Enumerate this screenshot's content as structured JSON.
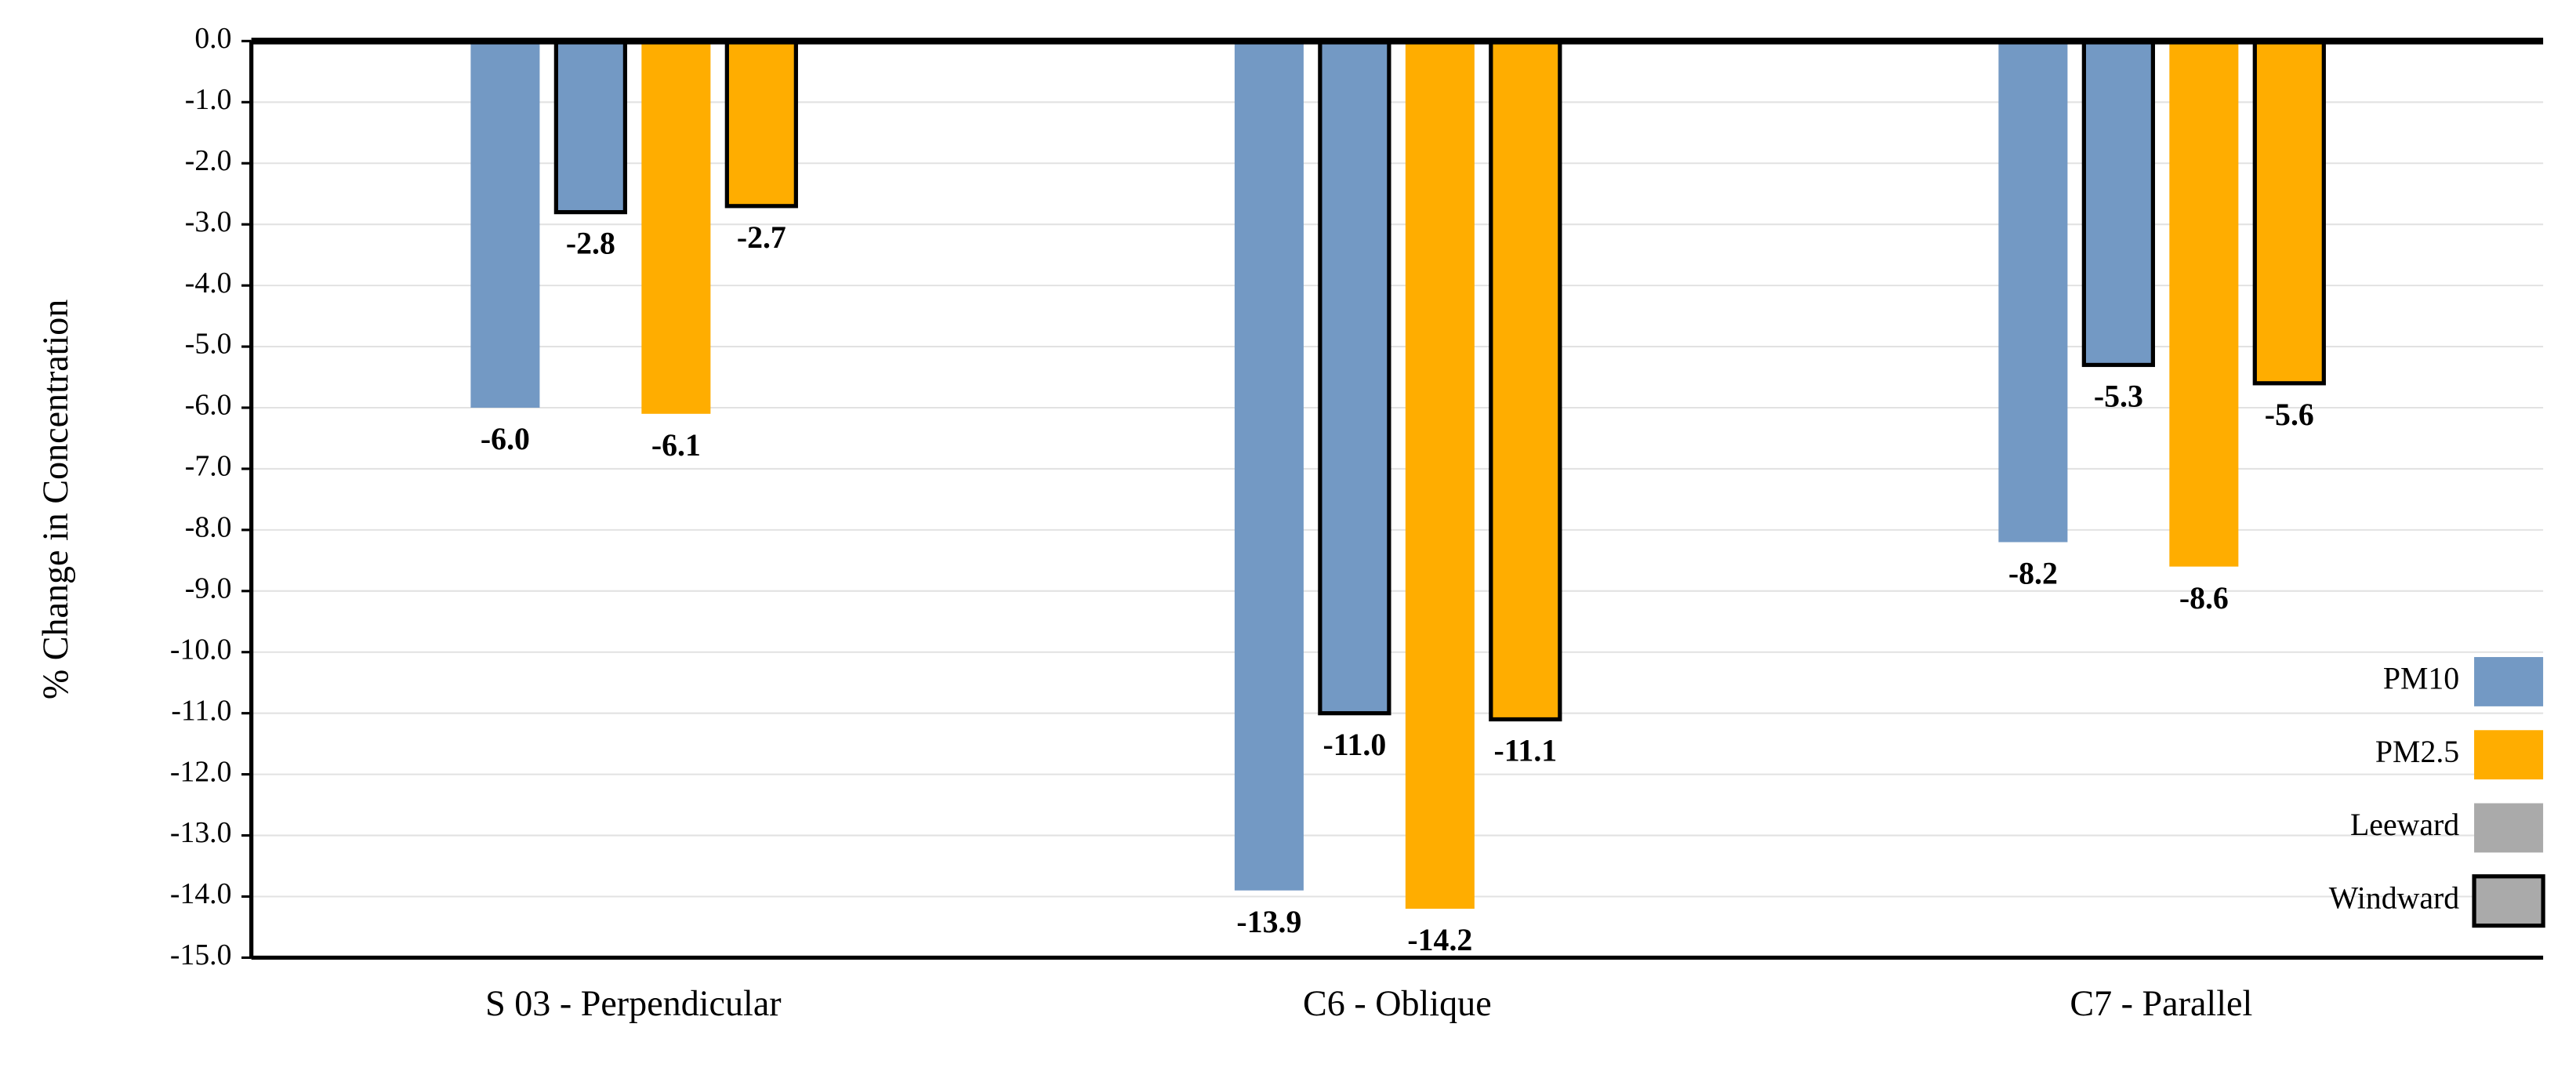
{
  "chart_data": {
    "type": "bar",
    "y_label": "% Change in Concentration",
    "categories": [
      "S 03 - Perpendicular",
      "C6 - Oblique",
      "C7 - Parallel"
    ],
    "series": [
      {
        "color": "#7399c4",
        "outline": false,
        "values": [
          -6.0,
          -13.9,
          -8.2
        ],
        "value_labels": [
          "-6.0",
          "-13.9",
          "-8.2"
        ]
      },
      {
        "color": "#7399c4",
        "outline": true,
        "values": [
          -2.8,
          -11.0,
          -5.3
        ],
        "value_labels": [
          "-2.8",
          "-11.0",
          "-5.3"
        ]
      },
      {
        "color": "#ffad00",
        "outline": false,
        "values": [
          -6.1,
          -14.2,
          -8.6
        ],
        "value_labels": [
          "-6.1",
          "-14.2",
          "-8.6"
        ]
      },
      {
        "color": "#ffad00",
        "outline": true,
        "values": [
          -2.7,
          -11.1,
          -5.6
        ],
        "value_labels": [
          "-2.7",
          "-11.1",
          "-5.6"
        ]
      }
    ],
    "legend": [
      {
        "label": "PM10",
        "color": "#7399c4",
        "outline": false
      },
      {
        "label": "PM2.5",
        "color": "#ffad00",
        "outline": false
      },
      {
        "label": "Leeward",
        "color": "#aaaaaa",
        "outline": false
      },
      {
        "label": "Windward",
        "color": "#aaaaaa",
        "outline": true
      }
    ],
    "ylim": [
      -15,
      0
    ],
    "yticks": [
      {
        "value": 0,
        "label": "0.0"
      },
      {
        "value": -1,
        "label": "-1.0"
      },
      {
        "value": -2,
        "label": "-2.0"
      },
      {
        "value": -3,
        "label": "-3.0"
      },
      {
        "value": -4,
        "label": "-4.0"
      },
      {
        "value": -5,
        "label": "-5.0"
      },
      {
        "value": -6,
        "label": "-6.0"
      },
      {
        "value": -7,
        "label": "-7.0"
      },
      {
        "value": -8,
        "label": "-8.0"
      },
      {
        "value": -9,
        "label": "-9.0"
      },
      {
        "value": -10,
        "label": "-10.0"
      },
      {
        "value": -11,
        "label": "-11.0"
      },
      {
        "value": -12,
        "label": "-12.0"
      },
      {
        "value": -13,
        "label": "-13.0"
      },
      {
        "value": -14,
        "label": "-14.0"
      },
      {
        "value": -15,
        "label": "-15.0"
      }
    ],
    "grid": true
  }
}
